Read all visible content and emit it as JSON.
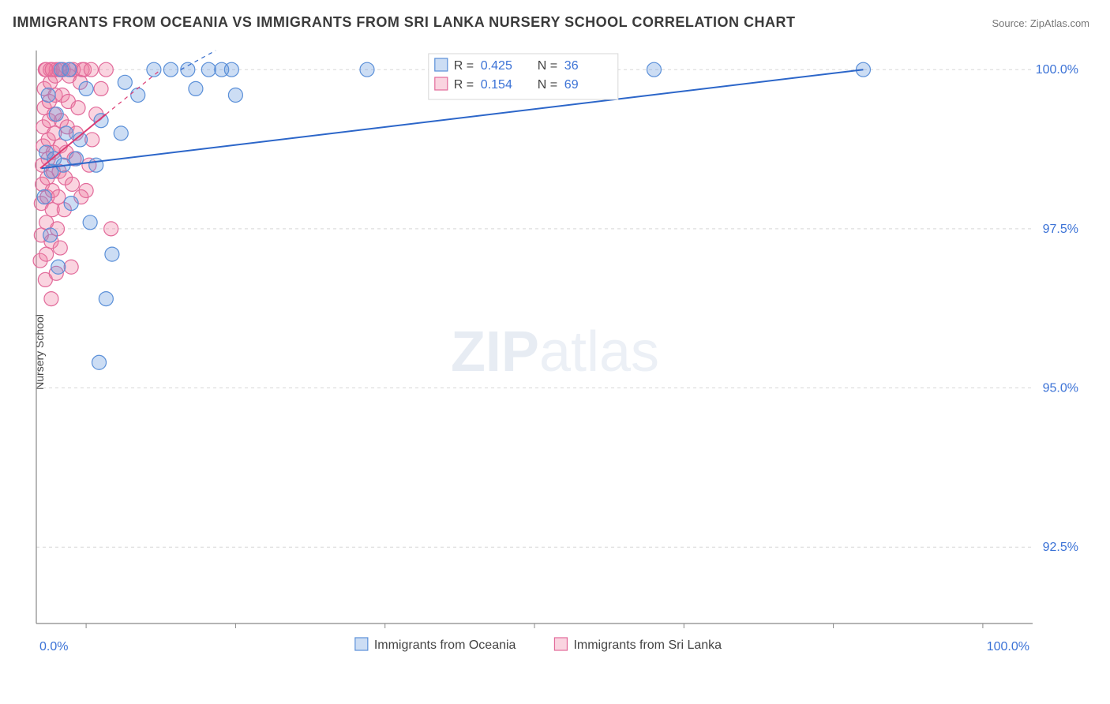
{
  "title": "IMMIGRANTS FROM OCEANIA VS IMMIGRANTS FROM SRI LANKA NURSERY SCHOOL CORRELATION CHART",
  "source": "Source: ZipAtlas.com",
  "watermark_bold": "ZIP",
  "watermark_light": "atlas",
  "ylabel": "Nursery School",
  "chart": {
    "type": "scatter",
    "xlim": [
      0,
      100
    ],
    "ylim": [
      91.3,
      100.3
    ],
    "x_ticks": [
      0,
      100
    ],
    "x_tick_labels": [
      "0.0%",
      "100.0%"
    ],
    "x_minor_ticks": [
      5,
      20,
      35,
      50,
      65,
      80,
      95
    ],
    "y_ticks": [
      92.5,
      95.0,
      97.5,
      100.0
    ],
    "y_tick_labels": [
      "92.5%",
      "95.0%",
      "97.5%",
      "100.0%"
    ],
    "background_color": "#ffffff",
    "grid_color": "#d7d7d7",
    "grid_dash": "4,4",
    "axis_color": "#888888",
    "marker_radius": 9,
    "marker_stroke_width": 1.2,
    "series": [
      {
        "name": "Immigrants from Oceania",
        "fill": "rgba(96,150,222,0.32)",
        "stroke": "#5a8fd8",
        "trend_color": "#2c66c9",
        "trend_width": 2,
        "r_label": "R =",
        "r_value": "0.425",
        "n_label": "N =",
        "n_value": "36",
        "trend": {
          "x0": 0.5,
          "y0": 98.45,
          "x1": 83.0,
          "y1": 100.0
        },
        "trend_ext": {
          "x0": 14.5,
          "y0": 100.0,
          "x1": 18.0,
          "y1": 100.3
        },
        "points": [
          [
            0.8,
            98.0
          ],
          [
            1.0,
            98.7
          ],
          [
            1.2,
            99.6
          ],
          [
            1.4,
            97.4
          ],
          [
            1.5,
            98.4
          ],
          [
            1.8,
            98.6
          ],
          [
            2.0,
            99.3
          ],
          [
            2.5,
            100.0
          ],
          [
            2.7,
            98.5
          ],
          [
            3.0,
            99.0
          ],
          [
            3.3,
            100.0
          ],
          [
            3.5,
            97.9
          ],
          [
            4.0,
            98.6
          ],
          [
            4.4,
            98.9
          ],
          [
            5.0,
            99.7
          ],
          [
            5.4,
            97.6
          ],
          [
            6.0,
            98.5
          ],
          [
            6.5,
            99.2
          ],
          [
            7.0,
            96.4
          ],
          [
            7.6,
            97.1
          ],
          [
            8.5,
            99.0
          ],
          [
            10.2,
            99.6
          ],
          [
            11.8,
            100.0
          ],
          [
            13.5,
            100.0
          ],
          [
            15.2,
            100.0
          ],
          [
            16.0,
            99.7
          ],
          [
            17.3,
            100.0
          ],
          [
            18.6,
            100.0
          ],
          [
            19.6,
            100.0
          ],
          [
            6.3,
            95.4
          ],
          [
            20.0,
            99.6
          ],
          [
            33.2,
            100.0
          ],
          [
            2.2,
            96.9
          ],
          [
            62.0,
            100.0
          ],
          [
            83.0,
            100.0
          ],
          [
            8.9,
            99.8
          ]
        ]
      },
      {
        "name": "Immigrants from Sri Lanka",
        "fill": "rgba(238,120,160,0.32)",
        "stroke": "#e26a9a",
        "trend_color": "#dc3a72",
        "trend_width": 2,
        "r_label": "R =",
        "r_value": "0.154",
        "n_label": "N =",
        "n_value": "69",
        "trend": {
          "x0": 0.4,
          "y0": 98.45,
          "x1": 7.0,
          "y1": 99.3
        },
        "trend_ext": {
          "x0": 7.0,
          "y0": 99.3,
          "x1": 12.5,
          "y1": 100.0
        },
        "points": [
          [
            0.4,
            97.0
          ],
          [
            0.5,
            97.4
          ],
          [
            0.5,
            97.9
          ],
          [
            0.6,
            98.2
          ],
          [
            0.6,
            98.5
          ],
          [
            0.7,
            98.8
          ],
          [
            0.7,
            99.1
          ],
          [
            0.8,
            99.4
          ],
          [
            0.8,
            99.7
          ],
          [
            0.9,
            100.0
          ],
          [
            0.9,
            96.7
          ],
          [
            1.0,
            97.1
          ],
          [
            1.0,
            97.6
          ],
          [
            1.1,
            98.0
          ],
          [
            1.1,
            98.3
          ],
          [
            1.2,
            98.6
          ],
          [
            1.2,
            98.9
          ],
          [
            1.3,
            99.2
          ],
          [
            1.3,
            99.5
          ],
          [
            1.4,
            99.8
          ],
          [
            1.4,
            100.0
          ],
          [
            1.5,
            96.4
          ],
          [
            1.5,
            97.3
          ],
          [
            1.6,
            97.8
          ],
          [
            1.6,
            98.1
          ],
          [
            1.7,
            98.4
          ],
          [
            1.7,
            98.7
          ],
          [
            1.8,
            99.0
          ],
          [
            1.8,
            99.3
          ],
          [
            1.9,
            99.6
          ],
          [
            1.9,
            99.9
          ],
          [
            2.0,
            100.0
          ],
          [
            2.1,
            97.5
          ],
          [
            2.2,
            98.0
          ],
          [
            2.3,
            98.4
          ],
          [
            2.4,
            98.8
          ],
          [
            2.5,
            99.2
          ],
          [
            2.6,
            99.6
          ],
          [
            2.7,
            100.0
          ],
          [
            2.8,
            97.8
          ],
          [
            2.9,
            98.3
          ],
          [
            3.0,
            98.7
          ],
          [
            3.1,
            99.1
          ],
          [
            3.2,
            99.5
          ],
          [
            3.3,
            99.9
          ],
          [
            3.4,
            100.0
          ],
          [
            3.6,
            98.2
          ],
          [
            3.8,
            98.6
          ],
          [
            4.0,
            99.0
          ],
          [
            4.2,
            99.4
          ],
          [
            4.4,
            99.8
          ],
          [
            4.6,
            100.0
          ],
          [
            5.0,
            98.1
          ],
          [
            5.3,
            98.5
          ],
          [
            5.6,
            98.9
          ],
          [
            6.0,
            99.3
          ],
          [
            6.5,
            99.7
          ],
          [
            7.0,
            100.0
          ],
          [
            2.0,
            96.8
          ],
          [
            2.4,
            97.2
          ],
          [
            3.5,
            96.9
          ],
          [
            4.5,
            98.0
          ],
          [
            7.5,
            97.5
          ],
          [
            3.7,
            100.0
          ],
          [
            4.8,
            100.0
          ],
          [
            5.5,
            100.0
          ],
          [
            1.0,
            100.0
          ],
          [
            1.6,
            100.0
          ],
          [
            2.3,
            100.0
          ]
        ]
      }
    ],
    "corr_box": {
      "x": 40.0,
      "w": 22.0,
      "line_h": 24
    },
    "legend_bottom_y_offset": 26
  }
}
